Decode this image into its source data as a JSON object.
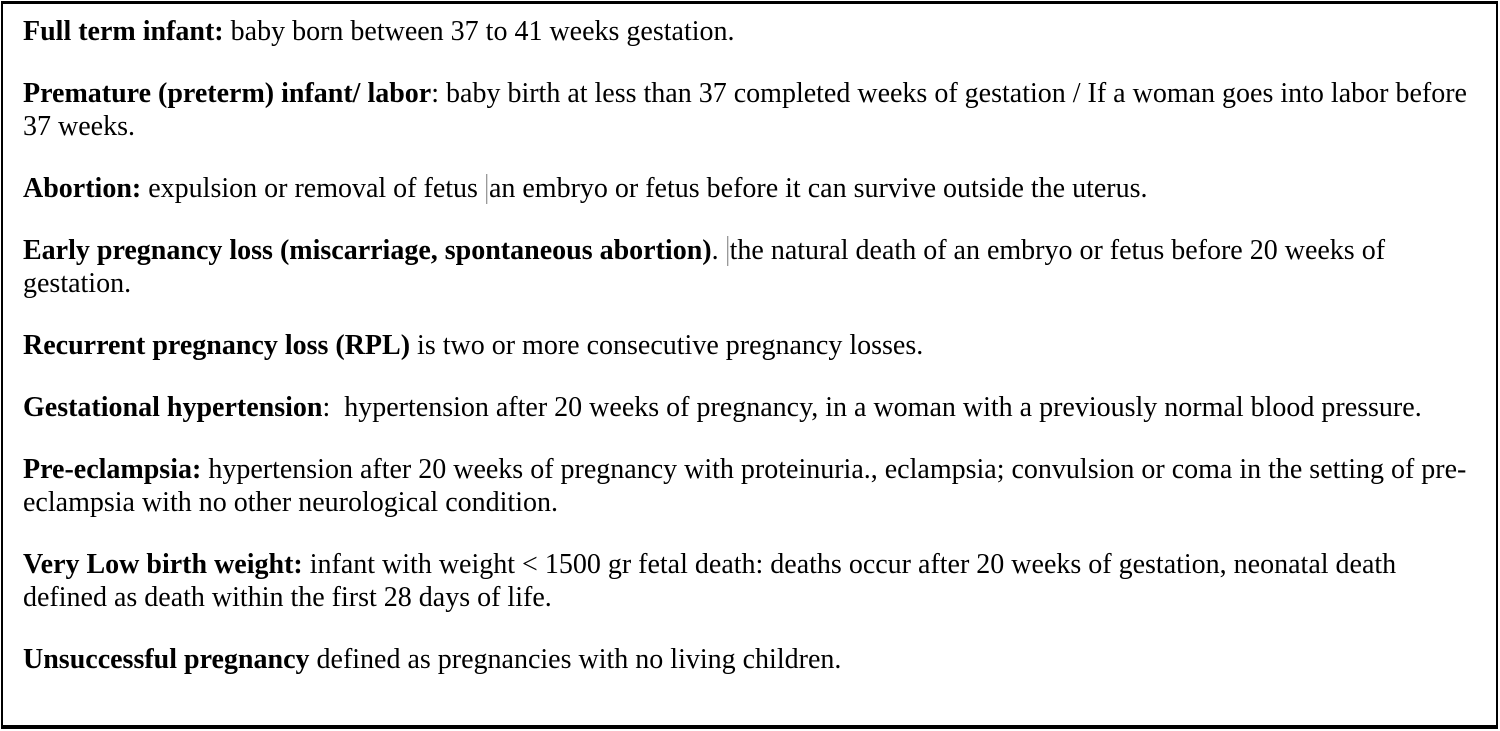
{
  "document": {
    "background_color": "#ffffff",
    "border_color": "#000000",
    "text_color": "#000000",
    "cursor_mark_color": "#9a9a9a",
    "paragraphs": [
      {
        "segments": [
          {
            "text": "Full term infant:",
            "bold": true
          },
          {
            "text": " baby born between 37 to 41 weeks gestation.",
            "bold": false
          }
        ]
      },
      {
        "segments": [
          {
            "text": "Premature (preterm) infant/ labor",
            "bold": true
          },
          {
            "text": ": baby birth at less than 37 completed weeks of gestation / If a woman goes into labor before 37 weeks.",
            "bold": false
          }
        ]
      },
      {
        "segments": [
          {
            "text": "Abortion:",
            "bold": true
          },
          {
            "text": " expulsion or removal of fetus ",
            "bold": false
          },
          {
            "cursor": true
          },
          {
            "text": "an embryo or fetus before it can survive outside the uterus.",
            "bold": false
          }
        ]
      },
      {
        "segments": [
          {
            "text": "Early pregnancy loss (miscarriage, spontaneous abortion)",
            "bold": true
          },
          {
            "text": ". ",
            "bold": false
          },
          {
            "cursor": true
          },
          {
            "text": "the natural death of an embryo or fetus before 20 weeks of gestation.",
            "bold": false
          }
        ]
      },
      {
        "segments": [
          {
            "text": "Recurrent pregnancy loss (RPL)",
            "bold": true
          },
          {
            "text": " is two or more consecutive pregnancy losses.",
            "bold": false
          }
        ]
      },
      {
        "segments": [
          {
            "text": "Gestational hypertension",
            "bold": true
          },
          {
            "text": ":  hypertension after 20 weeks of pregnancy, in a woman with a previously normal blood pressure.",
            "bold": false
          }
        ]
      },
      {
        "segments": [
          {
            "text": "Pre-eclampsia:",
            "bold": true
          },
          {
            "text": " hypertension after 20 weeks of pregnancy with proteinuria., eclampsia; convulsion or coma in the setting of pre-eclampsia with no other neurological condition.",
            "bold": false
          }
        ]
      },
      {
        "segments": [
          {
            "text": "Very Low birth weight:",
            "bold": true
          },
          {
            "text": " infant with weight < 1500 gr fetal death: deaths occur after 20 weeks of gestation, neonatal death defined as death within the first 28 days of life.",
            "bold": false
          }
        ]
      },
      {
        "segments": [
          {
            "text": "Unsuccessful pregnancy",
            "bold": true
          },
          {
            "text": " defined as pregnancies with no living children.",
            "bold": false
          }
        ]
      }
    ]
  }
}
